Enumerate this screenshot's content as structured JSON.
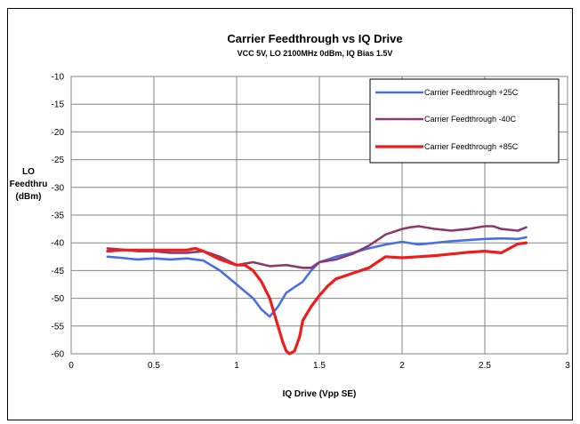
{
  "chart_data": {
    "type": "line",
    "title": "Carrier Feedthrough vs IQ Drive",
    "subtitle": "VCC 5V, LO 2100MHz 0dBm, IQ Bias 1.5V",
    "xlabel": "IQ Drive (Vpp SE)",
    "ylabel_lines": [
      "LO",
      "Feedthru",
      "(dBm)"
    ],
    "xlim": [
      0,
      3
    ],
    "ylim": [
      -60,
      -10
    ],
    "xticks": [
      "0",
      "0.5",
      "1",
      "1.5",
      "2",
      "2.5",
      "3"
    ],
    "yticks": [
      "-10",
      "-15",
      "-20",
      "-25",
      "-30",
      "-35",
      "-40",
      "-45",
      "-50",
      "-55",
      "-60"
    ],
    "grid": true,
    "legend_position": "top-right",
    "series": [
      {
        "name": "Carrier Feedthrough +25C",
        "color": "#4a6fe3",
        "x": [
          0.22,
          0.3,
          0.4,
          0.5,
          0.6,
          0.7,
          0.8,
          0.9,
          1.0,
          1.1,
          1.15,
          1.2,
          1.25,
          1.3,
          1.35,
          1.4,
          1.45,
          1.5,
          1.6,
          1.7,
          1.8,
          1.9,
          2.0,
          2.1,
          2.2,
          2.3,
          2.4,
          2.5,
          2.6,
          2.7,
          2.75
        ],
        "y": [
          -42.5,
          -42.7,
          -43.0,
          -42.8,
          -43.0,
          -42.8,
          -43.2,
          -45.0,
          -47.5,
          -50.0,
          -52.0,
          -53.3,
          -51.5,
          -49.0,
          -48.0,
          -47.0,
          -45.0,
          -43.5,
          -42.5,
          -41.8,
          -41.0,
          -40.3,
          -39.8,
          -40.3,
          -40.0,
          -39.7,
          -39.5,
          -39.3,
          -39.2,
          -39.3,
          -39.0
        ]
      },
      {
        "name": "Carrier Feedthrough -40C",
        "color": "#8b3a6b",
        "x": [
          0.22,
          0.3,
          0.4,
          0.5,
          0.6,
          0.7,
          0.8,
          0.9,
          1.0,
          1.1,
          1.2,
          1.3,
          1.4,
          1.45,
          1.5,
          1.6,
          1.7,
          1.8,
          1.9,
          2.0,
          2.05,
          2.1,
          2.2,
          2.3,
          2.4,
          2.5,
          2.55,
          2.6,
          2.7,
          2.75
        ],
        "y": [
          -41.0,
          -41.2,
          -41.5,
          -41.5,
          -41.8,
          -41.8,
          -41.5,
          -42.5,
          -44.0,
          -43.5,
          -44.2,
          -44.0,
          -44.5,
          -44.5,
          -43.5,
          -43.0,
          -42.0,
          -40.5,
          -38.5,
          -37.5,
          -37.2,
          -37.0,
          -37.5,
          -37.8,
          -37.5,
          -37.0,
          -37.0,
          -37.5,
          -37.8,
          -37.2
        ]
      },
      {
        "name": "Carrier Feedthrough +85C",
        "color": "#ee1c1c",
        "x": [
          0.22,
          0.3,
          0.4,
          0.5,
          0.6,
          0.7,
          0.75,
          0.8,
          0.9,
          1.0,
          1.05,
          1.1,
          1.15,
          1.2,
          1.25,
          1.28,
          1.3,
          1.32,
          1.35,
          1.38,
          1.4,
          1.45,
          1.5,
          1.55,
          1.6,
          1.7,
          1.8,
          1.85,
          1.9,
          2.0,
          2.1,
          2.2,
          2.3,
          2.4,
          2.5,
          2.6,
          2.7,
          2.75
        ],
        "y": [
          -41.5,
          -41.3,
          -41.3,
          -41.3,
          -41.3,
          -41.3,
          -41.0,
          -41.5,
          -43.0,
          -44.0,
          -44.0,
          -45.0,
          -47.0,
          -50.0,
          -55.0,
          -58.0,
          -59.5,
          -60.0,
          -59.5,
          -57.0,
          -54.0,
          -51.5,
          -49.5,
          -47.8,
          -46.5,
          -45.5,
          -44.5,
          -43.5,
          -42.5,
          -42.7,
          -42.5,
          -42.3,
          -42.0,
          -41.7,
          -41.5,
          -41.8,
          -40.2,
          -40.0
        ]
      }
    ]
  }
}
